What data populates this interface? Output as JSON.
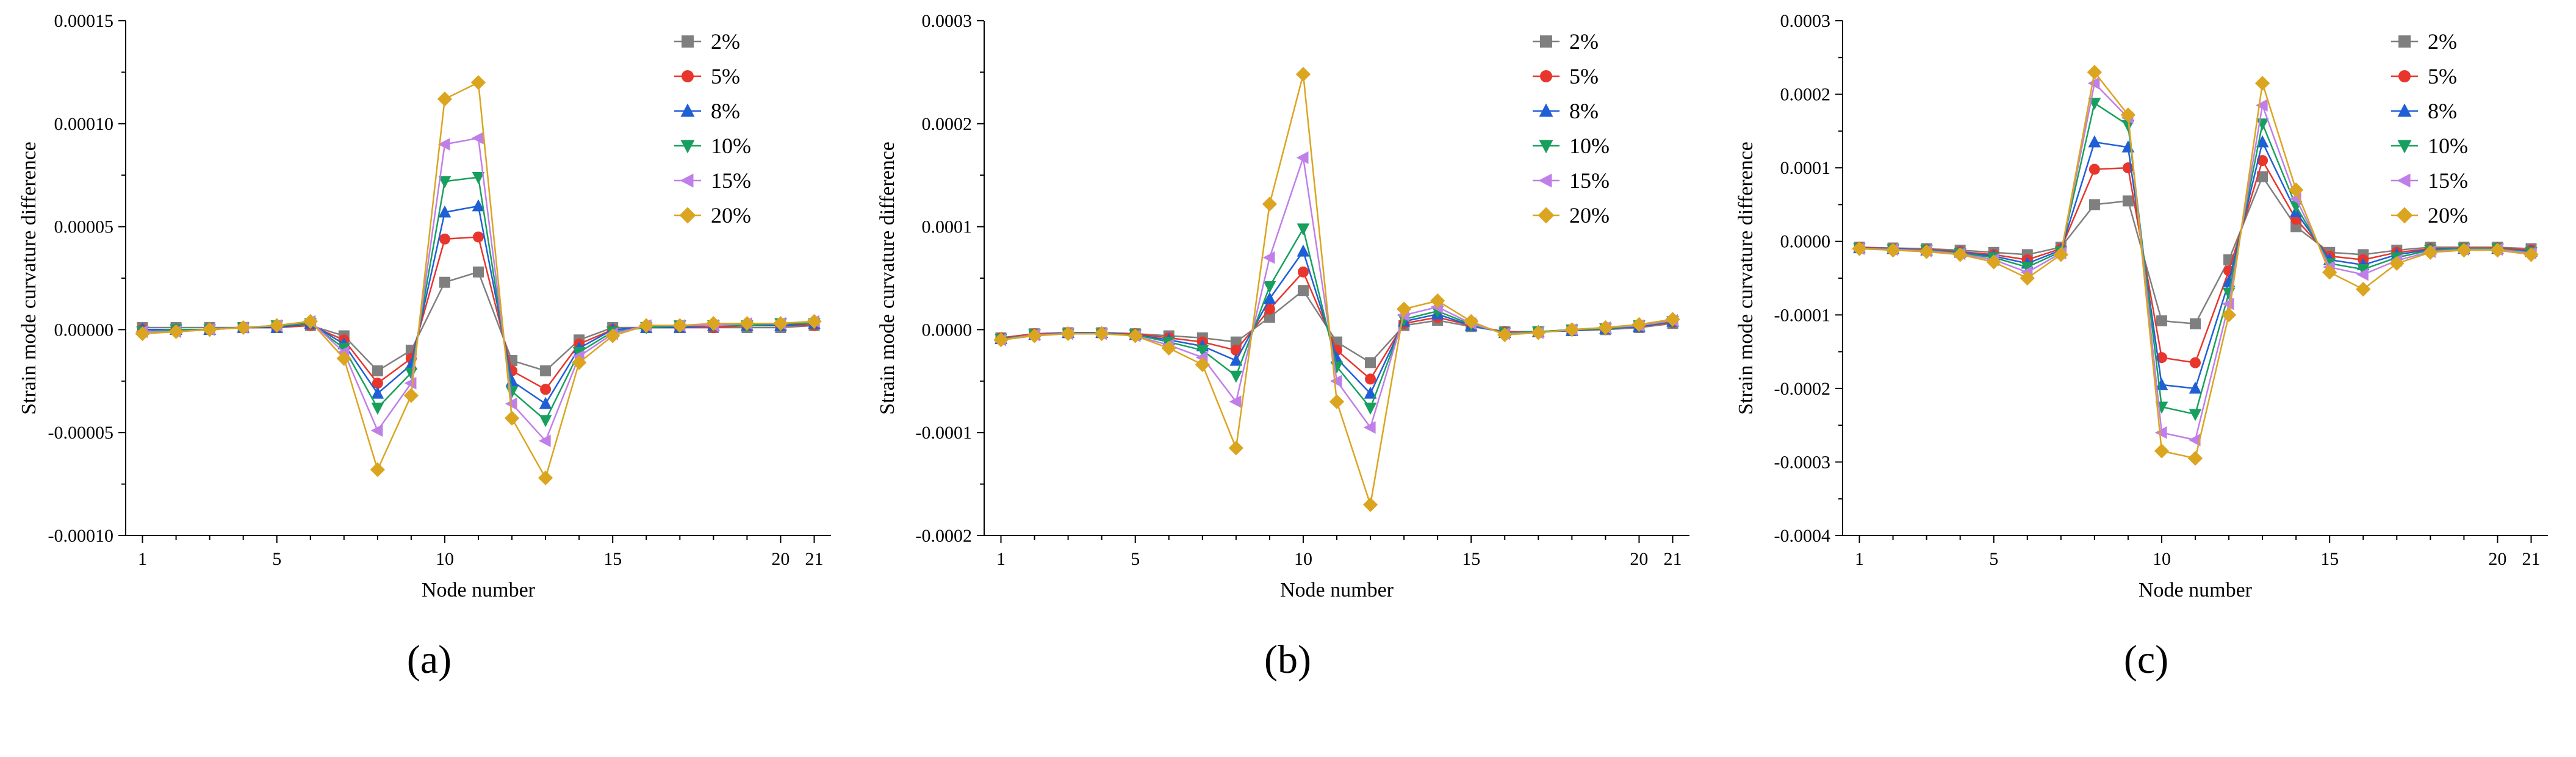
{
  "captions": {
    "a": "(a)",
    "b": "(b)",
    "c": "(c)"
  },
  "chart_data": [
    {
      "id": "a",
      "type": "line",
      "title": "",
      "xlabel": "Node number",
      "ylabel": "Strain mode curvature difference",
      "legend_position": "top-right-inside",
      "grid": false,
      "x": [
        1,
        2,
        3,
        4,
        5,
        6,
        7,
        8,
        9,
        10,
        11,
        12,
        13,
        14,
        15,
        16,
        17,
        18,
        19,
        20,
        21
      ],
      "xlim": [
        0.5,
        21.5
      ],
      "xticks": [
        1,
        5,
        10,
        15,
        20,
        21
      ],
      "xtick_labels": [
        "1",
        "5",
        "10",
        "15",
        "20",
        "21"
      ],
      "ylim": [
        -0.0001,
        0.00015
      ],
      "ytick_values": [
        -0.0001,
        -5e-05,
        0,
        5e-05,
        0.0001,
        0.00015
      ],
      "ytick_labels": [
        "-0.00010",
        "-0.00005",
        "0.00000",
        "0.00005",
        "0.00010",
        "0.00015"
      ],
      "series": [
        {
          "name": "2%",
          "color": "#7f7f7f",
          "marker": "square",
          "values": [
            1e-06,
            1e-06,
            1e-06,
            1e-06,
            1e-06,
            2e-06,
            -3e-06,
            -2e-05,
            -1e-05,
            2.3e-05,
            2.8e-05,
            -1.5e-05,
            -2e-05,
            -5e-06,
            1e-06,
            1e-06,
            1e-06,
            1e-06,
            1e-06,
            1e-06,
            2e-06
          ]
        },
        {
          "name": "5%",
          "color": "#e8362c",
          "marker": "circle",
          "values": [
            0,
            0,
            0,
            1e-06,
            1e-06,
            2e-06,
            -5e-06,
            -2.6e-05,
            -1.4e-05,
            4.4e-05,
            4.5e-05,
            -2e-05,
            -2.9e-05,
            -7e-06,
            0,
            1e-06,
            1e-06,
            1e-06,
            2e-06,
            2e-06,
            2e-06
          ]
        },
        {
          "name": "8%",
          "color": "#1f5fd6",
          "marker": "triangle-up",
          "values": [
            0,
            0,
            0,
            1e-06,
            1e-06,
            3e-06,
            -7e-06,
            -3.1e-05,
            -1.7e-05,
            5.7e-05,
            6e-05,
            -2.5e-05,
            -3.6e-05,
            -9e-06,
            0,
            1e-06,
            1e-06,
            2e-06,
            2e-06,
            2e-06,
            3e-06
          ]
        },
        {
          "name": "10%",
          "color": "#17a05d",
          "marker": "triangle-down",
          "values": [
            -1e-06,
            0,
            0,
            1e-06,
            2e-06,
            3e-06,
            -9e-06,
            -3.8e-05,
            -2.1e-05,
            7.2e-05,
            7.4e-05,
            -3e-05,
            -4.4e-05,
            -1.1e-05,
            -1e-06,
            1e-06,
            2e-06,
            2e-06,
            2e-06,
            3e-06,
            3e-06
          ]
        },
        {
          "name": "15%",
          "color": "#c07fe8",
          "marker": "triangle-left",
          "values": [
            -1e-06,
            -1e-06,
            0,
            1e-06,
            2e-06,
            4e-06,
            -1.1e-05,
            -4.9e-05,
            -2.6e-05,
            9e-05,
            9.3e-05,
            -3.6e-05,
            -5.4e-05,
            -1.3e-05,
            -2e-06,
            2e-06,
            2e-06,
            2e-06,
            3e-06,
            3e-06,
            4e-06
          ]
        },
        {
          "name": "20%",
          "color": "#dba520",
          "marker": "diamond",
          "values": [
            -2e-06,
            -1e-06,
            0,
            1e-06,
            2e-06,
            4e-06,
            -1.4e-05,
            -6.8e-05,
            -3.2e-05,
            0.000112,
            0.00012,
            -4.3e-05,
            -7.2e-05,
            -1.6e-05,
            -3e-06,
            2e-06,
            2e-06,
            3e-06,
            3e-06,
            3e-06,
            4e-06
          ]
        }
      ]
    },
    {
      "id": "b",
      "type": "line",
      "title": "",
      "xlabel": "Node number",
      "ylabel": "Strain mode curvature difference",
      "legend_position": "top-right-inside",
      "grid": false,
      "x": [
        1,
        2,
        3,
        4,
        5,
        6,
        7,
        8,
        9,
        10,
        11,
        12,
        13,
        14,
        15,
        16,
        17,
        18,
        19,
        20,
        21
      ],
      "xlim": [
        0.5,
        21.5
      ],
      "xticks": [
        1,
        5,
        10,
        15,
        20,
        21
      ],
      "xtick_labels": [
        "1",
        "5",
        "10",
        "15",
        "20",
        "21"
      ],
      "ylim": [
        -0.0002,
        0.0003
      ],
      "ytick_values": [
        -0.0002,
        -0.0001,
        0,
        0.0001,
        0.0002,
        0.0003
      ],
      "ytick_labels": [
        "-0.0002",
        "-0.0001",
        "0.0000",
        "0.0001",
        "0.0002",
        "0.0003"
      ],
      "series": [
        {
          "name": "2%",
          "color": "#7f7f7f",
          "marker": "square",
          "values": [
            -8e-06,
            -4e-06,
            -3e-06,
            -3e-06,
            -4e-06,
            -6e-06,
            -8e-06,
            -1.2e-05,
            1.2e-05,
            3.8e-05,
            -1.2e-05,
            -3.2e-05,
            4e-06,
            9e-06,
            3e-06,
            -2e-06,
            -2e-06,
            -1e-06,
            0,
            2e-06,
            6e-06
          ]
        },
        {
          "name": "5%",
          "color": "#e8362c",
          "marker": "circle",
          "values": [
            -8e-06,
            -4e-06,
            -3e-06,
            -3e-06,
            -4e-06,
            -8e-06,
            -1.2e-05,
            -2e-05,
            2e-05,
            5.6e-05,
            -2e-05,
            -4.8e-05,
            6e-06,
            1.2e-05,
            4e-06,
            -2e-06,
            -2e-06,
            -1e-06,
            1e-06,
            3e-06,
            7e-06
          ]
        },
        {
          "name": "8%",
          "color": "#1f5fd6",
          "marker": "triangle-up",
          "values": [
            -9e-06,
            -5e-06,
            -3e-06,
            -3e-06,
            -5e-06,
            -1e-05,
            -1.6e-05,
            -3e-05,
            3e-05,
            7.6e-05,
            -2.8e-05,
            -6.2e-05,
            8e-06,
            1.5e-05,
            4e-06,
            -3e-06,
            -2e-06,
            -1e-06,
            1e-06,
            3e-06,
            8e-06
          ]
        },
        {
          "name": "10%",
          "color": "#17a05d",
          "marker": "triangle-down",
          "values": [
            -9e-06,
            -5e-06,
            -4e-06,
            -4e-06,
            -5e-06,
            -1.2e-05,
            -2e-05,
            -4.5e-05,
            4.2e-05,
            9.8e-05,
            -3.6e-05,
            -7.6e-05,
            1e-05,
            1.8e-05,
            5e-06,
            -3e-06,
            -2e-06,
            0,
            1e-06,
            4e-06,
            8e-06
          ]
        },
        {
          "name": "15%",
          "color": "#c07fe8",
          "marker": "triangle-left",
          "values": [
            -1e-05,
            -5e-06,
            -4e-06,
            -4e-06,
            -6e-06,
            -1.5e-05,
            -2.7e-05,
            -7e-05,
            7e-05,
            0.000167,
            -5e-05,
            -9.5e-05,
            1.4e-05,
            2.2e-05,
            6e-06,
            -4e-06,
            -3e-06,
            0,
            2e-06,
            4e-06,
            9e-06
          ]
        },
        {
          "name": "20%",
          "color": "#dba520",
          "marker": "diamond",
          "values": [
            -1e-05,
            -6e-06,
            -4e-06,
            -4e-06,
            -6e-06,
            -1.8e-05,
            -3.4e-05,
            -0.000115,
            0.000122,
            0.000248,
            -7e-05,
            -0.00017,
            2e-05,
            2.8e-05,
            8e-06,
            -5e-06,
            -3e-06,
            0,
            2e-06,
            5e-06,
            1e-05
          ]
        }
      ]
    },
    {
      "id": "c",
      "type": "line",
      "title": "",
      "xlabel": "Node number",
      "ylabel": "Strain mode curvature difference",
      "legend_position": "top-right-inside",
      "grid": false,
      "x": [
        1,
        2,
        3,
        4,
        5,
        6,
        7,
        8,
        9,
        10,
        11,
        12,
        13,
        14,
        15,
        16,
        17,
        18,
        19,
        20,
        21
      ],
      "xlim": [
        0.5,
        21.5
      ],
      "xticks": [
        1,
        5,
        10,
        15,
        20,
        21
      ],
      "xtick_labels": [
        "1",
        "5",
        "10",
        "15",
        "20",
        "21"
      ],
      "ylim": [
        -0.0004,
        0.0003
      ],
      "ytick_values": [
        -0.0004,
        -0.0003,
        -0.0002,
        -0.0001,
        0,
        0.0001,
        0.0002,
        0.0003
      ],
      "ytick_labels": [
        "-0.0004",
        "-0.0003",
        "-0.0002",
        "-0.0001",
        "0.0000",
        "0.0001",
        "0.0002",
        "0.0003"
      ],
      "series": [
        {
          "name": "2%",
          "color": "#7f7f7f",
          "marker": "square",
          "values": [
            -8e-06,
            -9e-06,
            -1e-05,
            -1.2e-05,
            -1.5e-05,
            -1.8e-05,
            -8e-06,
            5e-05,
            5.5e-05,
            -0.000108,
            -0.000112,
            -2.5e-05,
            8.8e-05,
            2e-05,
            -1.5e-05,
            -1.8e-05,
            -1.2e-05,
            -8e-06,
            -8e-06,
            -8e-06,
            -1e-05
          ]
        },
        {
          "name": "5%",
          "color": "#e8362c",
          "marker": "circle",
          "values": [
            -8e-06,
            -1e-05,
            -1.1e-05,
            -1.4e-05,
            -1.8e-05,
            -2.5e-05,
            -1e-05,
            9.8e-05,
            0.0001,
            -0.000158,
            -0.000165,
            -4e-05,
            0.00011,
            3e-05,
            -2e-05,
            -2.5e-05,
            -1.5e-05,
            -1e-05,
            -9e-06,
            -9e-06,
            -1.2e-05
          ]
        },
        {
          "name": "8%",
          "color": "#1f5fd6",
          "marker": "triangle-up",
          "values": [
            -9e-06,
            -1e-05,
            -1.2e-05,
            -1.5e-05,
            -2e-05,
            -3e-05,
            -1.2e-05,
            0.000135,
            0.000128,
            -0.000195,
            -0.0002,
            -5.5e-05,
            0.000135,
            4e-05,
            -2.5e-05,
            -3.2e-05,
            -1.8e-05,
            -1.1e-05,
            -1e-05,
            -1e-05,
            -1.4e-05
          ]
        },
        {
          "name": "10%",
          "color": "#17a05d",
          "marker": "triangle-down",
          "values": [
            -9e-06,
            -1.1e-05,
            -1.2e-05,
            -1.6e-05,
            -2.2e-05,
            -3.5e-05,
            -1.4e-05,
            0.000188,
            0.000158,
            -0.000225,
            -0.000235,
            -7e-05,
            0.00016,
            4.8e-05,
            -3e-05,
            -3.8e-05,
            -2.2e-05,
            -1.2e-05,
            -1e-05,
            -1e-05,
            -1.5e-05
          ]
        },
        {
          "name": "15%",
          "color": "#c07fe8",
          "marker": "triangle-left",
          "values": [
            -1e-05,
            -1.1e-05,
            -1.3e-05,
            -1.7e-05,
            -2.5e-05,
            -4.2e-05,
            -1.6e-05,
            0.000215,
            0.000168,
            -0.00026,
            -0.00027,
            -8.5e-05,
            0.000185,
            5.8e-05,
            -3.5e-05,
            -4.5e-05,
            -2.6e-05,
            -1.4e-05,
            -1.1e-05,
            -1.1e-05,
            -1.6e-05
          ]
        },
        {
          "name": "20%",
          "color": "#dba520",
          "marker": "diamond",
          "values": [
            -1e-05,
            -1.2e-05,
            -1.4e-05,
            -1.8e-05,
            -2.8e-05,
            -5e-05,
            -1.8e-05,
            0.00023,
            0.000172,
            -0.000285,
            -0.000295,
            -0.0001,
            0.000215,
            7e-05,
            -4.2e-05,
            -6.5e-05,
            -3e-05,
            -1.5e-05,
            -1.2e-05,
            -1.2e-05,
            -1.8e-05
          ]
        }
      ]
    }
  ]
}
